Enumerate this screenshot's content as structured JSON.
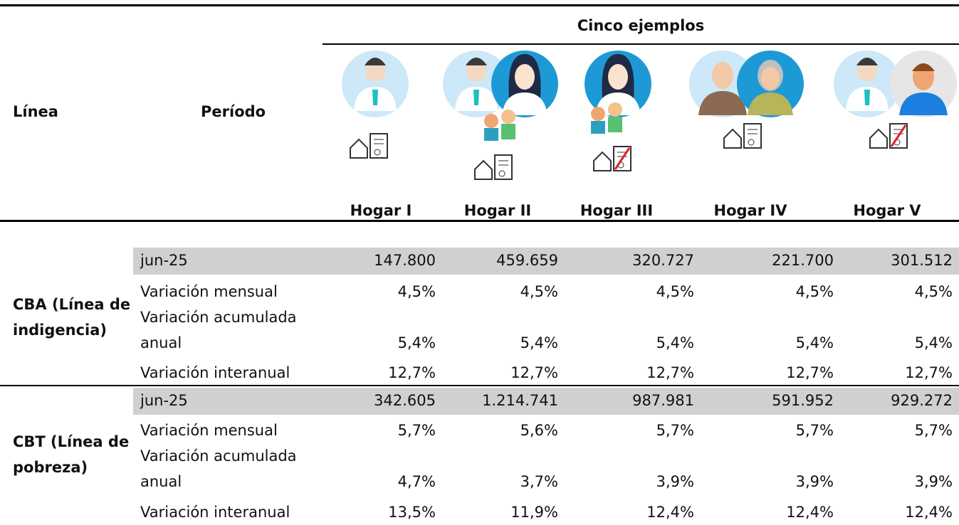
{
  "header": {
    "col_line": "Línea",
    "col_period": "Período",
    "group": "Cinco ejemplos",
    "households": [
      "Hogar I",
      "Hogar II",
      "Hogar III",
      "Hogar IV",
      "Hogar V"
    ]
  },
  "sections": [
    {
      "label": "CBA (Línea de indigencia)",
      "rows": [
        {
          "period": "jun-25",
          "values": [
            "147.800",
            "459.659",
            "320.727",
            "221.700",
            "301.512"
          ]
        },
        {
          "period": "Variación mensual",
          "values": [
            "4,5%",
            "4,5%",
            "4,5%",
            "4,5%",
            "4,5%"
          ]
        },
        {
          "period": "Variación acumulada anual",
          "values": [
            "5,4%",
            "5,4%",
            "5,4%",
            "5,4%",
            "5,4%"
          ]
        },
        {
          "period": "Variación interanual",
          "values": [
            "12,7%",
            "12,7%",
            "12,7%",
            "12,7%",
            "12,7%"
          ]
        }
      ]
    },
    {
      "label": "CBT (Línea de pobreza)",
      "rows": [
        {
          "period": "jun-25",
          "values": [
            "342.605",
            "1.214.741",
            "987.981",
            "591.952",
            "929.272"
          ]
        },
        {
          "period": "Variación mensual",
          "values": [
            "5,7%",
            "5,6%",
            "5,7%",
            "5,7%",
            "5,7%"
          ]
        },
        {
          "period": "Variación acumulada anual",
          "values": [
            "4,7%",
            "3,7%",
            "3,9%",
            "3,9%",
            "3,9%"
          ]
        },
        {
          "period": "Variación interanual",
          "values": [
            "13,5%",
            "11,9%",
            "12,4%",
            "12,4%",
            "12,4%"
          ]
        }
      ]
    }
  ]
}
